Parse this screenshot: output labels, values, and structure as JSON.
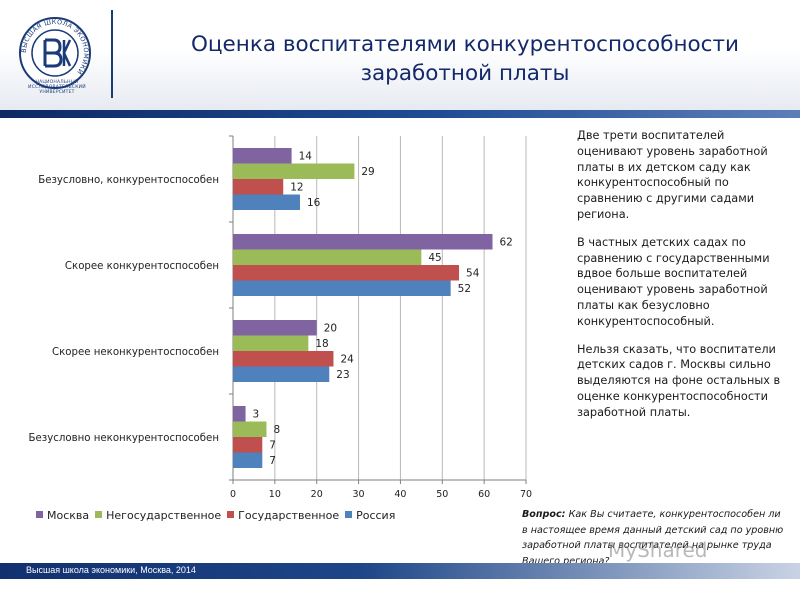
{
  "header": {
    "title_line1": "Оценка воспитателями конкурентоспособности",
    "title_line2": "заработной платы",
    "logo_caption": "НАЦИОНАЛЬНЫЙ ИССЛЕДОВАТЕЛЬСКИЙ УНИВЕРСИТЕТ",
    "logo_ring_text": "ВЫСШАЯ ШКОЛА ЭКОНОМИКИ"
  },
  "chart_data": {
    "type": "bar",
    "orientation": "horizontal",
    "categories": [
      "Безусловно, конкурентоспособен",
      "Скорее конкурентоспособен",
      "Скорее неконкурентоспособен",
      "Безусловно неконкурентоспособен"
    ],
    "series": [
      {
        "name": "Москва",
        "color": "#8064a2",
        "values": [
          14,
          62,
          20,
          3
        ]
      },
      {
        "name": "Негосударственное",
        "color": "#9bbb59",
        "values": [
          29,
          45,
          18,
          8
        ]
      },
      {
        "name": "Государственное",
        "color": "#c0504d",
        "values": [
          12,
          54,
          24,
          7
        ]
      },
      {
        "name": "Россия",
        "color": "#4f81bd",
        "values": [
          16,
          52,
          23,
          7
        ]
      }
    ],
    "xlim": [
      0,
      70
    ],
    "xticks": [
      0,
      10,
      20,
      30,
      40,
      50,
      60,
      70
    ],
    "grid": true,
    "legend_position": "bottom",
    "data_labels": true
  },
  "note": {
    "p1": "Две трети воспитателей оценивают уровень заработной платы в их детском саду как конкурентоспособный по сравнению с другими садами региона.",
    "p2": "В частных детских садах по сравнению с государственными вдвое больше воспитателей оценивают уровень заработной платы как безусловно конкурентоспособный.",
    "p3": "Нельзя сказать, что воспитатели детских садов г. Москвы сильно выделяются на фоне остальных в оценке конкурентоспособности заработной платы."
  },
  "question": {
    "label": "Вопрос:",
    "text": "Как Вы считаете, конкурентоспособен ли в настоящее время данный детский сад по уровню заработной платы воспитателей на рынке труда Вашего региона?"
  },
  "watermark": "MyShared",
  "footer": {
    "text": "Высшая школа экономики, Москва, 2014"
  }
}
